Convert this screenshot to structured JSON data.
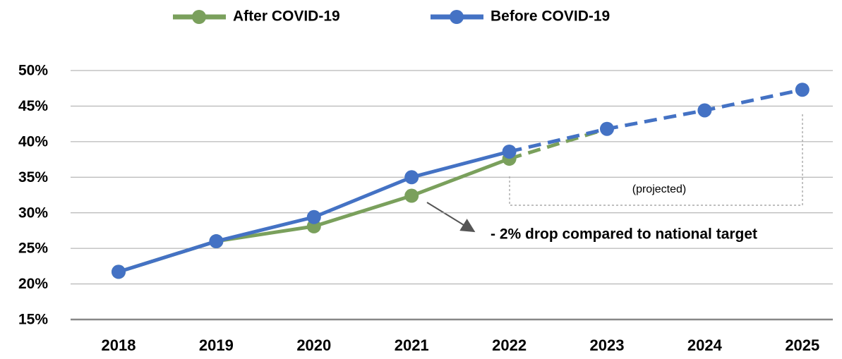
{
  "chart_data": {
    "type": "line",
    "categories": [
      "2018",
      "2019",
      "2020",
      "2021",
      "2022",
      "2023",
      "2024",
      "2025"
    ],
    "series": [
      {
        "name": "After COVID-19",
        "color": "#7aa05c",
        "values": [
          21.7,
          26.0,
          28.1,
          32.4,
          37.6,
          41.8,
          null,
          null
        ]
      },
      {
        "name": "Before COVID-19",
        "color": "#4472c4",
        "values": [
          21.7,
          26.0,
          29.4,
          35.0,
          38.6,
          41.8,
          44.4,
          47.3
        ]
      }
    ],
    "projection_start": "2022",
    "ylim": [
      15,
      50
    ],
    "yticks": [
      {
        "value": 15,
        "label": "15%"
      },
      {
        "value": 20,
        "label": "20%"
      },
      {
        "value": 25,
        "label": "25%"
      },
      {
        "value": 30,
        "label": "30%"
      },
      {
        "value": 35,
        "label": "35%"
      },
      {
        "value": 40,
        "label": "40%"
      },
      {
        "value": 45,
        "label": "45%"
      },
      {
        "value": 50,
        "label": "50%"
      }
    ],
    "grid": true,
    "legend": "top",
    "annotations": [
      "(projected)",
      "- 2% drop compared to national target"
    ]
  }
}
